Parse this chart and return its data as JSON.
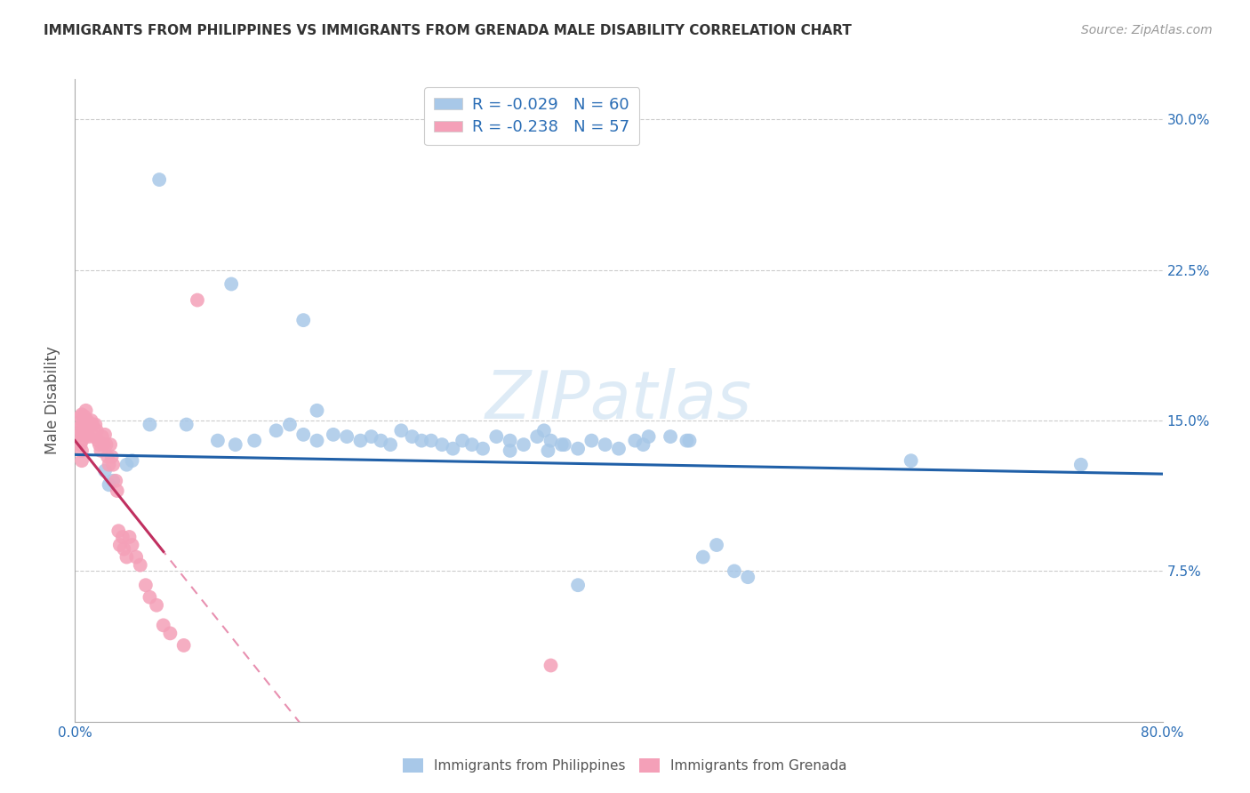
{
  "title": "IMMIGRANTS FROM PHILIPPINES VS IMMIGRANTS FROM GRENADA MALE DISABILITY CORRELATION CHART",
  "source": "Source: ZipAtlas.com",
  "ylabel": "Male Disability",
  "xlim": [
    0.0,
    0.8
  ],
  "ylim": [
    0.0,
    0.32
  ],
  "xticks": [
    0.0,
    0.1,
    0.2,
    0.3,
    0.4,
    0.5,
    0.6,
    0.7,
    0.8
  ],
  "xticklabels": [
    "0.0%",
    "",
    "",
    "",
    "",
    "",
    "",
    "",
    "80.0%"
  ],
  "yticks": [
    0.0,
    0.075,
    0.15,
    0.225,
    0.3
  ],
  "yticklabels": [
    "",
    "7.5%",
    "15.0%",
    "22.5%",
    "30.0%"
  ],
  "philippines_R": "-0.029",
  "philippines_N": "60",
  "grenada_R": "-0.238",
  "grenada_N": "57",
  "philippines_color": "#a8c8e8",
  "grenada_color": "#f4a0b8",
  "philippines_line_color": "#2060a8",
  "grenada_line_color": "#c03060",
  "grenada_line_dashed_color": "#e890b0",
  "watermark_color": "#c8dff0",
  "phil_x": [
    0.062,
    0.115,
    0.038,
    0.028,
    0.025,
    0.022,
    0.042,
    0.055,
    0.082,
    0.105,
    0.118,
    0.132,
    0.148,
    0.158,
    0.168,
    0.178,
    0.19,
    0.2,
    0.21,
    0.218,
    0.225,
    0.232,
    0.24,
    0.248,
    0.255,
    0.262,
    0.27,
    0.278,
    0.285,
    0.292,
    0.3,
    0.31,
    0.32,
    0.33,
    0.34,
    0.35,
    0.36,
    0.37,
    0.38,
    0.39,
    0.4,
    0.412,
    0.422,
    0.438,
    0.45,
    0.462,
    0.472,
    0.485,
    0.495,
    0.345,
    0.37,
    0.615,
    0.74,
    0.168,
    0.178,
    0.32,
    0.348,
    0.358,
    0.418,
    0.452
  ],
  "phil_y": [
    0.27,
    0.218,
    0.128,
    0.12,
    0.118,
    0.125,
    0.13,
    0.148,
    0.148,
    0.14,
    0.138,
    0.14,
    0.145,
    0.148,
    0.143,
    0.14,
    0.143,
    0.142,
    0.14,
    0.142,
    0.14,
    0.138,
    0.145,
    0.142,
    0.14,
    0.14,
    0.138,
    0.136,
    0.14,
    0.138,
    0.136,
    0.142,
    0.14,
    0.138,
    0.142,
    0.14,
    0.138,
    0.136,
    0.14,
    0.138,
    0.136,
    0.14,
    0.142,
    0.142,
    0.14,
    0.082,
    0.088,
    0.075,
    0.072,
    0.145,
    0.068,
    0.13,
    0.128,
    0.2,
    0.155,
    0.135,
    0.135,
    0.138,
    0.138,
    0.14
  ],
  "gren_x": [
    0.004,
    0.004,
    0.004,
    0.004,
    0.005,
    0.005,
    0.005,
    0.005,
    0.005,
    0.005,
    0.006,
    0.006,
    0.007,
    0.007,
    0.008,
    0.008,
    0.009,
    0.009,
    0.01,
    0.01,
    0.011,
    0.012,
    0.013,
    0.014,
    0.015,
    0.016,
    0.017,
    0.018,
    0.019,
    0.02,
    0.021,
    0.022,
    0.023,
    0.024,
    0.025,
    0.026,
    0.027,
    0.028,
    0.03,
    0.031,
    0.032,
    0.033,
    0.035,
    0.036,
    0.038,
    0.04,
    0.042,
    0.045,
    0.048,
    0.052,
    0.055,
    0.06,
    0.065,
    0.07,
    0.08,
    0.09,
    0.35
  ],
  "gren_y": [
    0.152,
    0.147,
    0.143,
    0.138,
    0.153,
    0.148,
    0.144,
    0.14,
    0.135,
    0.13,
    0.15,
    0.145,
    0.152,
    0.148,
    0.155,
    0.148,
    0.15,
    0.143,
    0.148,
    0.142,
    0.148,
    0.15,
    0.148,
    0.142,
    0.148,
    0.145,
    0.14,
    0.138,
    0.135,
    0.142,
    0.138,
    0.143,
    0.138,
    0.132,
    0.128,
    0.138,
    0.132,
    0.128,
    0.12,
    0.115,
    0.095,
    0.088,
    0.092,
    0.086,
    0.082,
    0.092,
    0.088,
    0.082,
    0.078,
    0.068,
    0.062,
    0.058,
    0.048,
    0.044,
    0.038,
    0.21,
    0.028
  ]
}
